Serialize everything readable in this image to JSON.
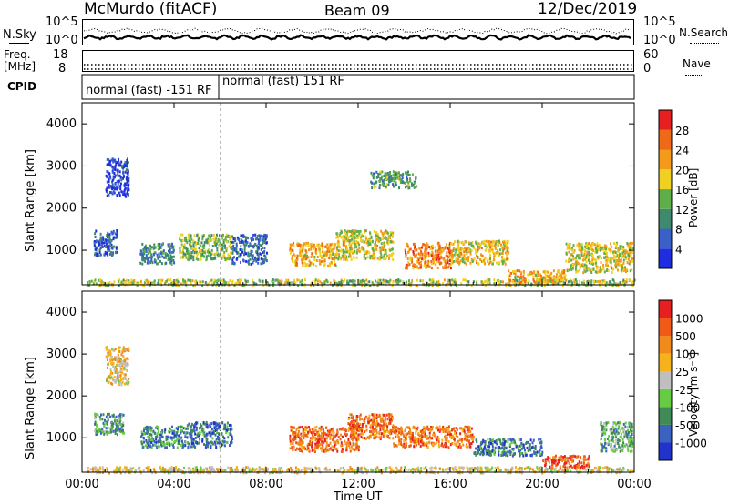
{
  "header": {
    "station": "McMurdo (fitACF)",
    "beam": "Beam 09",
    "date": "12/Dec/2019"
  },
  "top_panels": {
    "nsky_label": "N.Sky",
    "nsky_ticks": [
      "10^5",
      "10^0"
    ],
    "nsearch_label": "N.Search",
    "nsearch_ticks": [
      "10^5",
      "10^0"
    ],
    "freq_label_line1": "Freq.",
    "freq_label_line2": "[MHz]",
    "freq_ticks": [
      "18",
      "8"
    ],
    "nave_label": "Nave",
    "nave_ticks": [
      "60",
      "0"
    ],
    "cpid_label": "CPID",
    "cpid_segments": [
      "normal (fast) -151 RF",
      "normal (fast) 151 RF"
    ]
  },
  "chart_data": [
    {
      "type": "heatmap",
      "name": "power",
      "ylabel": "Slant Range [km]",
      "xlabel": "Time UT",
      "xticks": [
        "00:00",
        "04:00",
        "08:00",
        "12:00",
        "16:00",
        "20:00",
        "00:00"
      ],
      "yticks": [
        "1000",
        "2000",
        "3000",
        "4000"
      ],
      "ylim": [
        180,
        4500
      ],
      "xlim_hours": [
        0,
        24
      ],
      "colorbar_label": "Power [dB]",
      "colorbar_ticks": [
        "4",
        "8",
        "12",
        "16",
        "20",
        "24",
        "28"
      ],
      "colorbar_colors": [
        "#1f2de0",
        "#3a60c8",
        "#3f8a6e",
        "#5fae4a",
        "#f0d020",
        "#f39a1a",
        "#ef6a18",
        "#e62020"
      ],
      "clusters": [
        {
          "t": 0.2,
          "t2": 24,
          "r": 190,
          "r2": 330,
          "v": 0.5
        },
        {
          "t": 0.5,
          "t2": 1.5,
          "r": 900,
          "r2": 1500,
          "v": 0.15
        },
        {
          "t": 1.0,
          "t2": 2.0,
          "r": 2300,
          "r2": 3200,
          "v": 0.1
        },
        {
          "t": 2.5,
          "t2": 4.0,
          "r": 700,
          "r2": 1200,
          "v": 0.3
        },
        {
          "t": 4.2,
          "t2": 6.5,
          "r": 800,
          "r2": 1400,
          "v": 0.45
        },
        {
          "t": 6.5,
          "t2": 8.0,
          "r": 700,
          "r2": 1400,
          "v": 0.2
        },
        {
          "t": 9.0,
          "t2": 11.0,
          "r": 650,
          "r2": 1200,
          "v": 0.65
        },
        {
          "t": 11.0,
          "t2": 13.5,
          "r": 800,
          "r2": 1500,
          "v": 0.55
        },
        {
          "t": 12.5,
          "t2": 14.5,
          "r": 2500,
          "r2": 2900,
          "v": 0.35
        },
        {
          "t": 14.0,
          "t2": 16.0,
          "r": 600,
          "r2": 1200,
          "v": 0.75
        },
        {
          "t": 16.0,
          "t2": 18.5,
          "r": 700,
          "r2": 1250,
          "v": 0.6
        },
        {
          "t": 18.5,
          "t2": 21.0,
          "r": 250,
          "r2": 550,
          "v": 0.65
        },
        {
          "t": 21.0,
          "t2": 23.9,
          "r": 500,
          "r2": 1200,
          "v": 0.55
        }
      ]
    },
    {
      "type": "heatmap",
      "name": "velocity",
      "ylabel": "Slant Range [km]",
      "xlabel": "Time UT",
      "xticks": [
        "00:00",
        "04:00",
        "08:00",
        "12:00",
        "16:00",
        "20:00",
        "00:00"
      ],
      "yticks": [
        "1000",
        "2000",
        "3000",
        "4000"
      ],
      "ylim": [
        180,
        4500
      ],
      "xlim_hours": [
        0,
        24
      ],
      "colorbar_label": "Velocity [m s⁻¹]",
      "colorbar_ticks": [
        "1000",
        "500",
        "100",
        "25",
        "-25",
        "-100",
        "-500",
        "-1000"
      ],
      "colorbar_colors": [
        "#2233cc",
        "#3a62c0",
        "#3f8a55",
        "#66cc44",
        "#bfbfbf",
        "#f5b21a",
        "#f08a1a",
        "#ef5a18",
        "#e62020"
      ],
      "clusters": [
        {
          "t": 0.2,
          "t2": 24,
          "r": 190,
          "r2": 330,
          "v": 0.55
        },
        {
          "t": 0.5,
          "t2": 1.8,
          "r": 1100,
          "r2": 1600,
          "v": 0.3
        },
        {
          "t": 1.0,
          "t2": 2.0,
          "r": 2300,
          "r2": 3200,
          "v": 0.6
        },
        {
          "t": 2.5,
          "t2": 4.5,
          "r": 800,
          "r2": 1300,
          "v": 0.25
        },
        {
          "t": 4.5,
          "t2": 6.5,
          "r": 800,
          "r2": 1400,
          "v": 0.2
        },
        {
          "t": 9.0,
          "t2": 12.0,
          "r": 700,
          "r2": 1300,
          "v": 0.8
        },
        {
          "t": 11.5,
          "t2": 13.5,
          "r": 1000,
          "r2": 1600,
          "v": 0.8
        },
        {
          "t": 13.5,
          "t2": 17.0,
          "r": 800,
          "r2": 1300,
          "v": 0.78
        },
        {
          "t": 17.0,
          "t2": 20.0,
          "r": 600,
          "r2": 1000,
          "v": 0.2
        },
        {
          "t": 20.0,
          "t2": 22.0,
          "r": 300,
          "r2": 600,
          "v": 0.85
        },
        {
          "t": 22.5,
          "t2": 23.9,
          "r": 700,
          "r2": 1400,
          "v": 0.35
        }
      ]
    }
  ]
}
